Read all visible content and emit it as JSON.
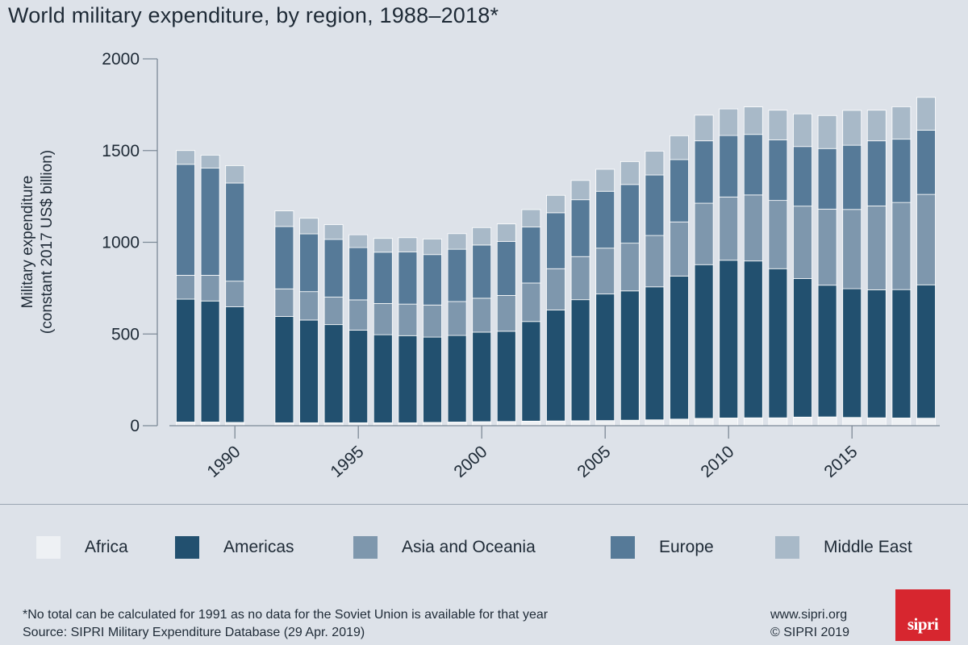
{
  "chart_data": {
    "type": "bar",
    "stacked": true,
    "title": "World military expenditure, by region, 1988–2018*",
    "ylabel_line1": "Military expenditure",
    "ylabel_line2": "(constant 2017 US$ billion)",
    "xlabel": "",
    "ylim": [
      0,
      2000
    ],
    "yticks": [
      0,
      500,
      1000,
      1500,
      2000
    ],
    "xtick_labels": [
      "1990",
      "1995",
      "2000",
      "2005",
      "2010",
      "2015"
    ],
    "x": [
      1988,
      1989,
      1990,
      1992,
      1993,
      1994,
      1995,
      1996,
      1997,
      1998,
      1999,
      2000,
      2001,
      2002,
      2003,
      2004,
      2005,
      2006,
      2007,
      2008,
      2009,
      2010,
      2011,
      2012,
      2013,
      2014,
      2015,
      2016,
      2017,
      2018
    ],
    "missing_years": [
      1991
    ],
    "series": [
      {
        "name": "Africa",
        "color": "#eef1f4",
        "values": [
          20,
          20,
          18,
          16,
          16,
          16,
          16,
          16,
          16,
          18,
          20,
          22,
          23,
          25,
          26,
          27,
          28,
          30,
          32,
          36,
          40,
          42,
          43,
          43,
          47,
          48,
          45,
          43,
          42,
          41
        ]
      },
      {
        "name": "Americas",
        "color": "#22506f",
        "values": [
          670,
          660,
          630,
          580,
          560,
          535,
          505,
          480,
          475,
          465,
          472,
          488,
          492,
          543,
          605,
          660,
          690,
          705,
          725,
          780,
          838,
          860,
          855,
          813,
          755,
          718,
          702,
          698,
          700,
          727
        ]
      },
      {
        "name": "Asia and Oceania",
        "color": "#7e97ad",
        "values": [
          130,
          140,
          140,
          150,
          155,
          150,
          165,
          170,
          172,
          175,
          185,
          185,
          195,
          210,
          225,
          235,
          250,
          260,
          280,
          295,
          335,
          345,
          360,
          372,
          395,
          415,
          432,
          457,
          475,
          493
        ]
      },
      {
        "name": "Europe",
        "color": "#567a98",
        "values": [
          605,
          585,
          535,
          340,
          315,
          315,
          285,
          280,
          285,
          275,
          285,
          290,
          295,
          305,
          305,
          310,
          310,
          320,
          330,
          340,
          340,
          335,
          330,
          330,
          325,
          330,
          350,
          355,
          345,
          350
        ]
      },
      {
        "name": "Middle East",
        "color": "#a8b9c8",
        "values": [
          75,
          70,
          95,
          85,
          85,
          80,
          70,
          75,
          77,
          85,
          85,
          95,
          95,
          95,
          95,
          105,
          120,
          125,
          130,
          130,
          140,
          145,
          150,
          162,
          178,
          180,
          190,
          167,
          177,
          179
        ]
      }
    ]
  },
  "legend": {
    "africa": "Africa",
    "americas": "Americas",
    "asia": "Asia and Oceania",
    "europe": "Europe",
    "middle_east": "Middle East"
  },
  "colors": {
    "africa": "#eef1f4",
    "americas": "#22506f",
    "asia": "#7e97ad",
    "europe": "#567a98",
    "middle_east": "#a8b9c8",
    "background": "#dde2e9",
    "logo": "#d7262f"
  },
  "footer": {
    "footnote": "*No total can be calculated for 1991 as no data for the Soviet Union is available for that year",
    "source": "Source: SIPRI Military Expenditure Database (29 Apr. 2019)",
    "website": "www.sipri.org",
    "copyright": "© SIPRI 2019",
    "logo_text": "sipri"
  }
}
